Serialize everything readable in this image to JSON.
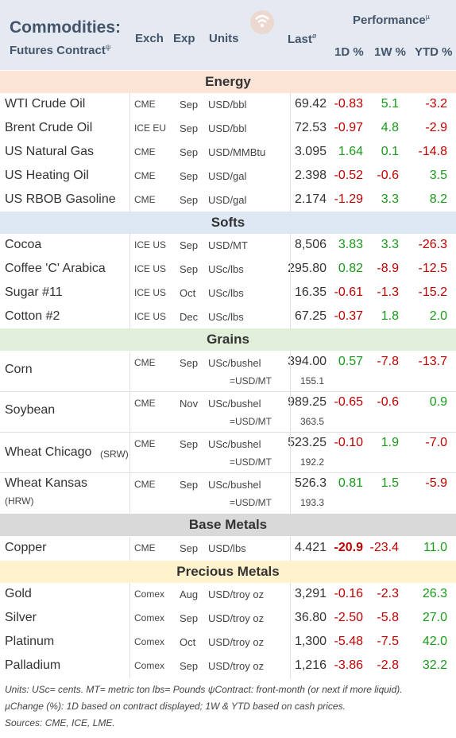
{
  "header": {
    "title_line1": "Commodities:",
    "title_line2": "Futures Contract",
    "title_sup": "ψ",
    "col_exch": "Exch",
    "col_exp": "Exp",
    "col_units": "Units",
    "col_last": "Last",
    "col_last_sup": "ø",
    "performance": "Performance",
    "performance_sup": "µ",
    "col_1d": "1D %",
    "col_1w": "1W %",
    "col_ytd": "YTD %"
  },
  "sections": {
    "energy": "Energy",
    "softs": "Softs",
    "grains": "Grains",
    "base_metals": "Base Metals",
    "precious_metals": "Precious Metals"
  },
  "energy": [
    {
      "name": "WTI Crude Oil",
      "exch": "CME",
      "exp": "Sep",
      "units": "USD/bbl",
      "last": "69.42",
      "d1": "-0.83",
      "w1": "5.1",
      "ytd": "-3.2"
    },
    {
      "name": "Brent Crude Oil",
      "exch": "ICE EU",
      "exp": "Sep",
      "units": "USD/bbl",
      "last": "72.53",
      "d1": "-0.97",
      "w1": "4.8",
      "ytd": "-2.9"
    },
    {
      "name": "US Natural Gas",
      "exch": "CME",
      "exp": "Sep",
      "units": "USD/MMBtu",
      "last": "3.095",
      "d1": "1.64",
      "w1": "0.1",
      "ytd": "-14.8"
    },
    {
      "name": "US Heating Oil",
      "exch": "CME",
      "exp": "Sep",
      "units": "USD/gal",
      "last": "2.398",
      "d1": "-0.52",
      "w1": "-0.6",
      "ytd": "3.5"
    },
    {
      "name": "US RBOB Gasoline",
      "exch": "CME",
      "exp": "Sep",
      "units": "USD/gal",
      "last": "2.174",
      "d1": "-1.29",
      "w1": "3.3",
      "ytd": "8.2"
    }
  ],
  "softs": [
    {
      "name": "Cocoa",
      "exch": "ICE US",
      "exp": "Sep",
      "units": "USD/MT",
      "last": "8,506",
      "d1": "3.83",
      "w1": "3.3",
      "ytd": "-26.3"
    },
    {
      "name": "Coffee 'C' Arabica",
      "exch": "ICE US",
      "exp": "Sep",
      "units": "USc/lbs",
      "last": "295.80",
      "d1": "0.82",
      "w1": "-8.9",
      "ytd": "-12.5"
    },
    {
      "name": "Sugar #11",
      "exch": "ICE US",
      "exp": "Oct",
      "units": "USc/lbs",
      "last": "16.35",
      "d1": "-0.61",
      "w1": "-1.3",
      "ytd": "-15.2"
    },
    {
      "name": "Cotton #2",
      "exch": "ICE US",
      "exp": "Dec",
      "units": "USc/lbs",
      "last": "67.25",
      "d1": "-0.37",
      "w1": "1.8",
      "ytd": "2.0"
    }
  ],
  "grains": [
    {
      "name": "Corn",
      "name_sub": "",
      "exch": "CME",
      "exp": "Sep",
      "units": "USc/bushel",
      "last": "394.00",
      "units2": "=USD/MT",
      "last2": "155.1",
      "d1": "0.57",
      "w1": "-7.8",
      "ytd": "-13.7"
    },
    {
      "name": "Soybean",
      "name_sub": "",
      "exch": "CME",
      "exp": "Nov",
      "units": "USc/bushel",
      "last": "989.25",
      "units2": "=USD/MT",
      "last2": "363.5",
      "d1": "-0.65",
      "w1": "-0.6",
      "ytd": "0.9"
    },
    {
      "name": "Wheat Chicago",
      "name_sub": "(SRW)",
      "exch": "CME",
      "exp": "Sep",
      "units": "USc/bushel",
      "last": "523.25",
      "units2": "=USD/MT",
      "last2": "192.2",
      "d1": "-0.10",
      "w1": "1.9",
      "ytd": "-7.0"
    },
    {
      "name": "Wheat Kansas",
      "name_sub": "(HRW)",
      "exch": "CME",
      "exp": "Sep",
      "units": "USc/bushel",
      "last": "526.3",
      "units2": "=USD/MT",
      "last2": "193.3",
      "d1": "0.81",
      "w1": "1.5",
      "ytd": "-5.9"
    }
  ],
  "base_metals": [
    {
      "name": "Copper",
      "exch": "CME",
      "exp": "Sep",
      "units": "USD/lbs",
      "last": "4.421",
      "d1": "-20.9",
      "w1": "-23.4",
      "ytd": "11.0"
    }
  ],
  "precious_metals": [
    {
      "name": "Gold",
      "exch": "Comex",
      "exp": "Aug",
      "units": "USD/troy oz",
      "last": "3,291",
      "d1": "-0.16",
      "w1": "-2.3",
      "ytd": "26.3"
    },
    {
      "name": "Silver",
      "exch": "Comex",
      "exp": "Sep",
      "units": "USD/troy oz",
      "last": "36.80",
      "d1": "-2.50",
      "w1": "-5.8",
      "ytd": "27.0"
    },
    {
      "name": "Platinum",
      "exch": "Comex",
      "exp": "Oct",
      "units": "USD/troy oz",
      "last": "1,300",
      "d1": "-5.48",
      "w1": "-7.5",
      "ytd": "42.0"
    },
    {
      "name": "Palladium",
      "exch": "Comex",
      "exp": "Sep",
      "units": "USD/troy oz",
      "last": "1,216",
      "d1": "-3.86",
      "w1": "-2.8",
      "ytd": "32.2"
    }
  ],
  "footer": {
    "line1": "Units: USc= cents.   MT= metric ton    lbs= Pounds   ψContract: front-month (or next if more liquid).",
    "line2": "µChange (%): 1D based on contract displayed; 1W & YTD based on cash prices.",
    "line3": "Sources: CME, ICE, LME."
  },
  "colors": {
    "positive": "#1a9a1a",
    "negative": "#c00000",
    "header_bg": "#e5e9f2",
    "energy_bg": "#fce4d6",
    "softs_bg": "#dde8f4",
    "grains_bg": "#e2efda",
    "base_metals_bg": "#d9d9d9",
    "precious_bg": "#fff2cc"
  },
  "icons": {
    "logo": "wifi-signal-logo-icon"
  }
}
